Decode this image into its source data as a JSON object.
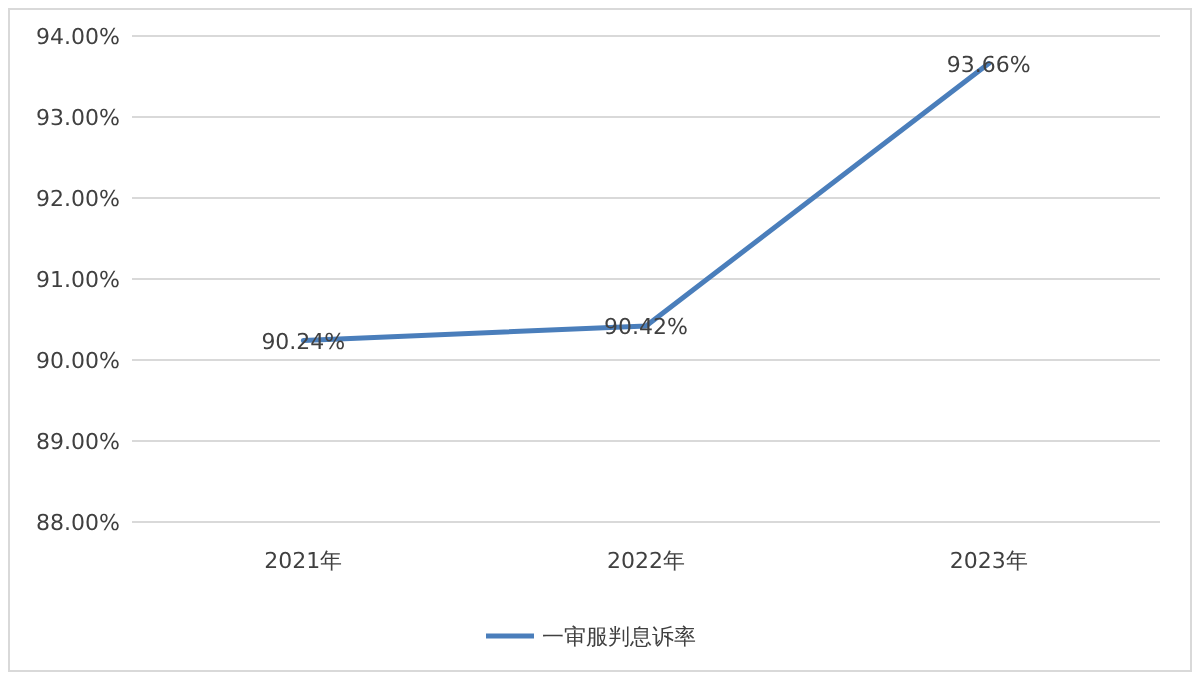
{
  "chart_data": {
    "type": "line",
    "categories": [
      "2021年",
      "2022年",
      "2023年"
    ],
    "series": [
      {
        "name": "一审服判息诉率",
        "color": "#4a7ebb",
        "values": [
          90.24,
          90.42,
          93.66
        ],
        "value_labels": [
          "90.24%",
          "90.42%",
          "93.66%"
        ]
      }
    ],
    "ylim": [
      88,
      94
    ],
    "yticks": [
      {
        "value": 88,
        "label": "88.00%"
      },
      {
        "value": 89,
        "label": "89.00%"
      },
      {
        "value": 90,
        "label": "90.00%"
      },
      {
        "value": 91,
        "label": "91.00%"
      },
      {
        "value": 92,
        "label": "92.00%"
      },
      {
        "value": 93,
        "label": "93.00%"
      },
      {
        "value": 94,
        "label": "94.00%"
      }
    ],
    "grid": "y",
    "legend": "bottom"
  }
}
